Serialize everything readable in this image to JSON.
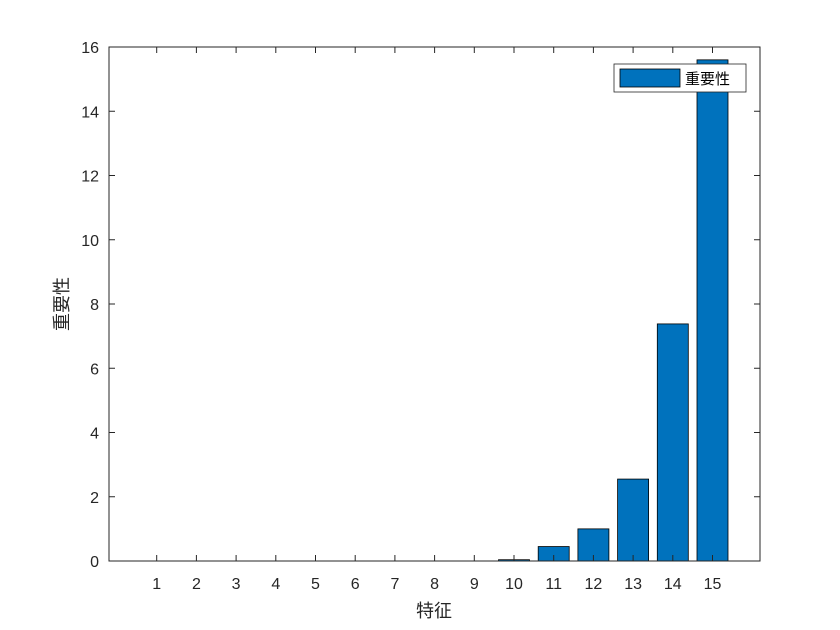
{
  "chart_data": {
    "type": "bar",
    "categories": [
      "1",
      "2",
      "3",
      "4",
      "5",
      "6",
      "7",
      "8",
      "9",
      "10",
      "11",
      "12",
      "13",
      "14",
      "15"
    ],
    "series": [
      {
        "name": "重要性",
        "values": [
          0,
          0,
          0,
          0,
          0,
          0,
          0,
          0,
          0,
          0.04,
          0.45,
          1.0,
          2.55,
          7.38,
          15.6
        ]
      }
    ],
    "title": "",
    "xlabel": "特征",
    "ylabel": "重要性",
    "ylim": [
      0,
      16
    ],
    "yticks": [
      0,
      2,
      4,
      6,
      8,
      10,
      12,
      14,
      16
    ],
    "grid": false,
    "legend_position": "top-right",
    "bar_color": "#0072BD"
  }
}
